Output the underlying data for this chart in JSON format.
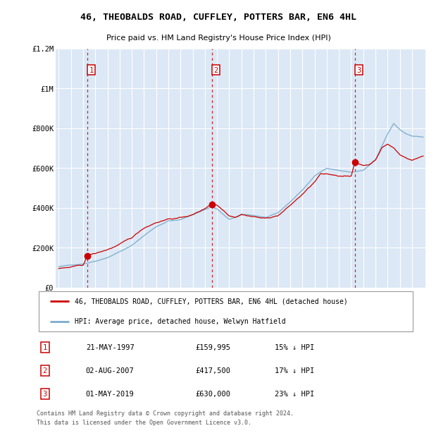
{
  "title": "46, THEOBALDS ROAD, CUFFLEY, POTTERS BAR, EN6 4HL",
  "subtitle": "Price paid vs. HM Land Registry's House Price Index (HPI)",
  "legend_label_red": "46, THEOBALDS ROAD, CUFFLEY, POTTERS BAR, EN6 4HL (detached house)",
  "legend_label_blue": "HPI: Average price, detached house, Welwyn Hatfield",
  "footer1": "Contains HM Land Registry data © Crown copyright and database right 2024.",
  "footer2": "This data is licensed under the Open Government Licence v3.0.",
  "transactions": [
    {
      "label": "1",
      "date": "21-MAY-1997",
      "price": 159995,
      "pct": "15%",
      "dir": "↓",
      "x": 1997.38
    },
    {
      "label": "2",
      "date": "02-AUG-2007",
      "price": 417500,
      "pct": "17%",
      "dir": "↓",
      "x": 2007.58
    },
    {
      "label": "3",
      "date": "01-MAY-2019",
      "price": 630000,
      "pct": "23%",
      "dir": "↓",
      "x": 2019.33
    }
  ],
  "ylim": [
    0,
    1200000
  ],
  "yticks": [
    0,
    200000,
    400000,
    600000,
    800000,
    1000000,
    1200000
  ],
  "ytick_labels": [
    "£0",
    "£200K",
    "£400K",
    "£600K",
    "£800K",
    "£1M",
    "£1.2M"
  ],
  "red_color": "#cc0000",
  "blue_color": "#7aaccc",
  "dashed_color": "#cc0000",
  "background_plot": "#dce8f5",
  "background_fig": "#ffffff",
  "grid_color": "#ffffff"
}
